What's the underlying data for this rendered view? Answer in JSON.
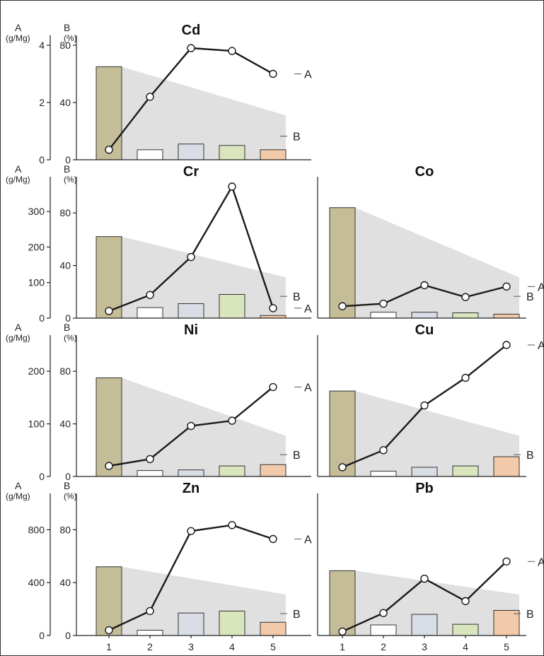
{
  "chart_data": [
    {
      "type": "bar+line",
      "title": "Cd",
      "axis_a_title": "A",
      "axis_a_unit": "(g/Mg)",
      "axis_b_title": "B",
      "axis_b_unit": "(%)",
      "categories": [
        "1",
        "2",
        "3",
        "4",
        "5"
      ],
      "a_ylim": [
        0,
        4
      ],
      "a_ticks": [
        "0",
        "2",
        "4"
      ],
      "b_ylim": [
        0,
        80
      ],
      "b_ticks": [
        "0",
        "40",
        "80"
      ],
      "series": [
        {
          "name": "A",
          "axis": "A",
          "kind": "line",
          "values": [
            0.35,
            2.2,
            3.9,
            3.8,
            3.0
          ]
        },
        {
          "name": "B",
          "axis": "B",
          "kind": "bar",
          "values": [
            65,
            7,
            11,
            10,
            7
          ]
        }
      ],
      "band_b": [
        65,
        31
      ],
      "show_x_labels": false
    },
    {
      "type": "bar+line",
      "title": "Cr",
      "axis_a_title": "A",
      "axis_a_unit": "(g/Mg)",
      "axis_b_title": "B",
      "axis_b_unit": "(%)",
      "categories": [
        "1",
        "2",
        "3",
        "4",
        "5"
      ],
      "a_ylim": [
        0,
        370
      ],
      "a_ticks": [
        "0",
        "100",
        "200",
        "300"
      ],
      "b_ylim": [
        0,
        100
      ],
      "b_ticks": [
        "0",
        "40",
        "80"
      ],
      "series": [
        {
          "name": "A",
          "axis": "A",
          "kind": "line",
          "values": [
            20,
            65,
            172,
            370,
            28
          ]
        },
        {
          "name": "B",
          "axis": "B",
          "kind": "bar",
          "values": [
            62,
            8,
            11,
            18,
            2
          ]
        }
      ],
      "band_b": [
        62,
        31
      ],
      "show_x_labels": false
    },
    {
      "type": "bar+line",
      "title": "Co",
      "categories": [
        "1",
        "2",
        "3",
        "4",
        "5"
      ],
      "a_ylim": [
        0,
        100
      ],
      "b_ylim": [
        0,
        100
      ],
      "series": [
        {
          "name": "A",
          "axis": "A",
          "kind": "line",
          "values": [
            9,
            11,
            25,
            16,
            24
          ]
        },
        {
          "name": "B",
          "axis": "B",
          "kind": "bar",
          "values": [
            84,
            4.5,
            4.5,
            4,
            3
          ]
        }
      ],
      "band_b": [
        84,
        31
      ],
      "show_x_labels": false
    },
    {
      "type": "bar+line",
      "title": "Ni",
      "axis_a_title": "A",
      "axis_a_unit": "(g/Mg)",
      "axis_b_title": "B",
      "axis_b_unit": "(%)",
      "categories": [
        "1",
        "2",
        "3",
        "4",
        "5"
      ],
      "a_ylim": [
        0,
        250
      ],
      "a_ticks": [
        "0",
        "100",
        "200"
      ],
      "b_ylim": [
        0,
        100
      ],
      "b_ticks": [
        "0",
        "40",
        "80"
      ],
      "series": [
        {
          "name": "A",
          "axis": "A",
          "kind": "line",
          "values": [
            20,
            33,
            96,
            106,
            170
          ]
        },
        {
          "name": "B",
          "axis": "B",
          "kind": "bar",
          "values": [
            75,
            4.5,
            5,
            8,
            9
          ]
        }
      ],
      "band_b": [
        75,
        31
      ],
      "show_x_labels": false
    },
    {
      "type": "bar+line",
      "title": "Cu",
      "categories": [
        "1",
        "2",
        "3",
        "4",
        "5"
      ],
      "a_ylim": [
        0,
        100
      ],
      "b_ylim": [
        0,
        100
      ],
      "series": [
        {
          "name": "A",
          "axis": "A",
          "kind": "line",
          "values": [
            7,
            20,
            54,
            75,
            100
          ]
        },
        {
          "name": "B",
          "axis": "B",
          "kind": "bar",
          "values": [
            65,
            4,
            7,
            8,
            15
          ]
        }
      ],
      "band_b": [
        65,
        31
      ],
      "show_x_labels": false
    },
    {
      "type": "bar+line",
      "title": "Zn",
      "axis_a_title": "A",
      "axis_a_unit": "(g/Mg)",
      "axis_b_title": "B",
      "axis_b_unit": "(%)",
      "categories": [
        "1",
        "2",
        "3",
        "4",
        "5"
      ],
      "a_ylim": [
        0,
        1000
      ],
      "a_ticks": [
        "0",
        "400",
        "800"
      ],
      "b_ylim": [
        0,
        100
      ],
      "b_ticks": [
        "0",
        "40",
        "80"
      ],
      "series": [
        {
          "name": "A",
          "axis": "A",
          "kind": "line",
          "values": [
            40,
            185,
            790,
            835,
            730
          ]
        },
        {
          "name": "B",
          "axis": "B",
          "kind": "bar",
          "values": [
            52,
            4,
            17,
            18.5,
            10
          ]
        }
      ],
      "band_b": [
        52,
        31
      ],
      "show_x_labels": true
    },
    {
      "type": "bar+line",
      "title": "Pb",
      "categories": [
        "1",
        "2",
        "3",
        "4",
        "5"
      ],
      "a_ylim": [
        0,
        100
      ],
      "b_ylim": [
        0,
        100
      ],
      "series": [
        {
          "name": "A",
          "axis": "A",
          "kind": "line",
          "values": [
            3,
            17,
            43,
            26,
            56
          ]
        },
        {
          "name": "B",
          "axis": "B",
          "kind": "bar",
          "values": [
            49,
            8,
            16,
            8.5,
            19
          ]
        }
      ],
      "band_b": [
        49,
        31
      ],
      "show_x_labels": true
    }
  ],
  "colors": {
    "bar_1": "#c4bd97",
    "bar_2": "#ffffff",
    "bar_3": "#d9dde6",
    "bar_4": "#d9e5bd",
    "bar_5": "#f2c9a9",
    "band": "#e0e0e0",
    "line": "#1a1a1a",
    "frame": "#333333"
  }
}
